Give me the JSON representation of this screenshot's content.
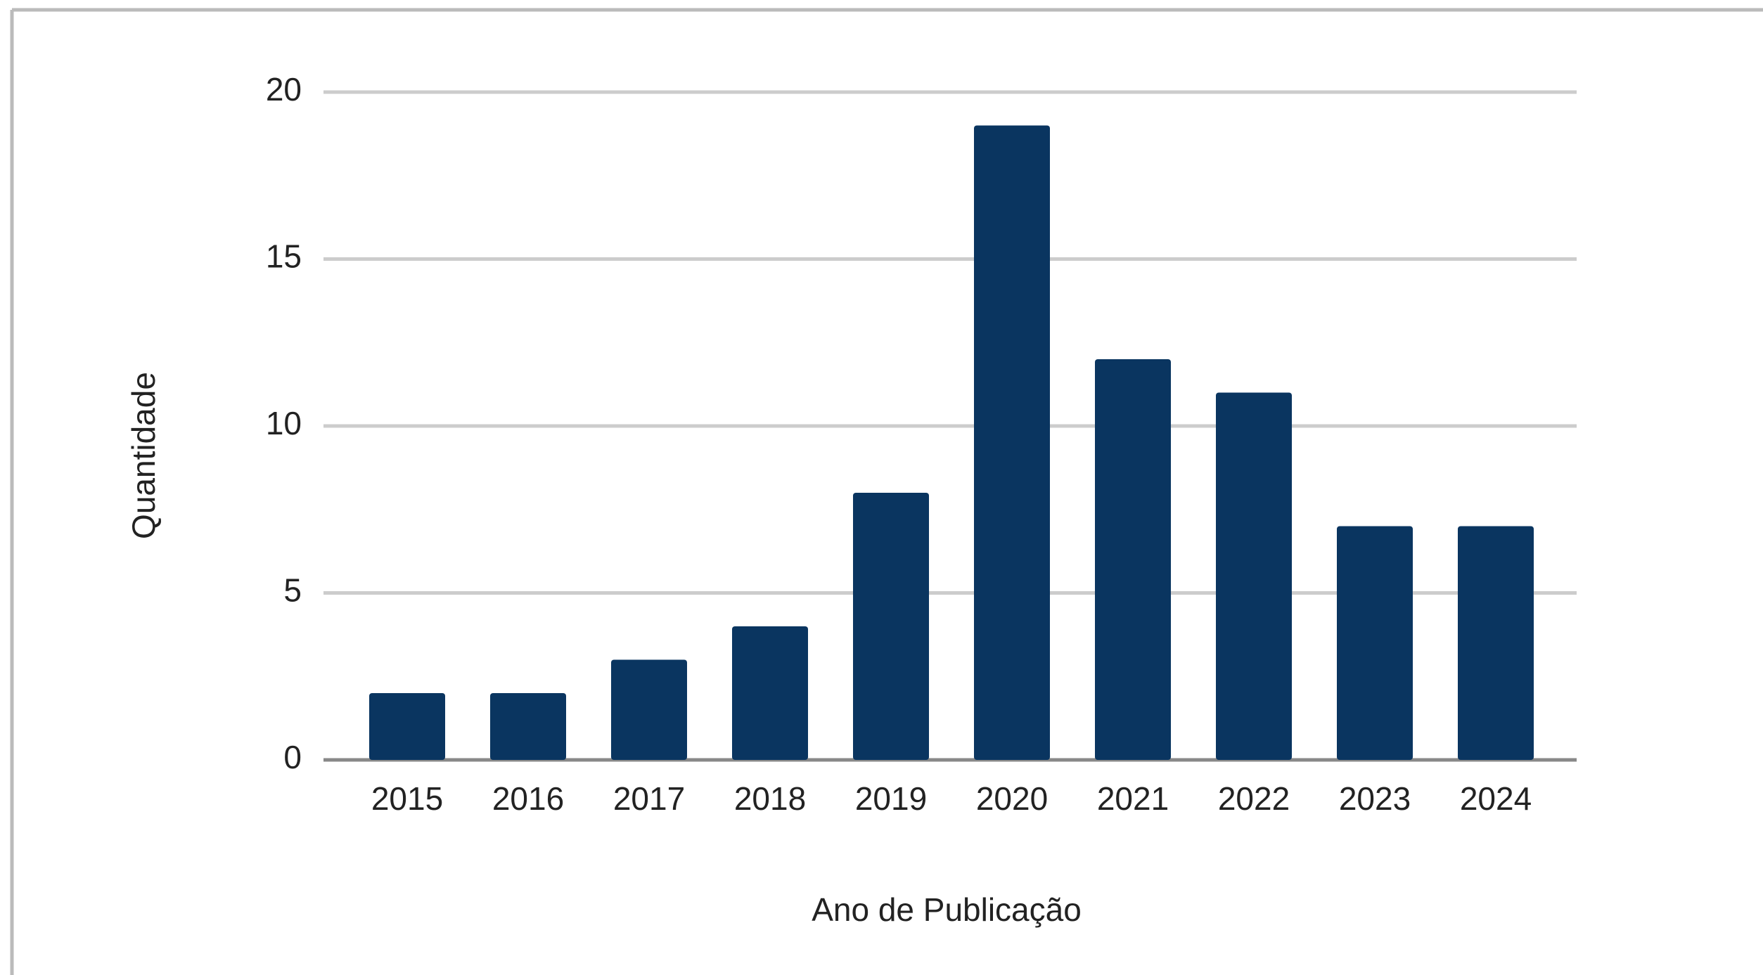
{
  "chart_data": {
    "type": "bar",
    "x_label": "Ano de Publicação",
    "y_label": "Quantidade",
    "categories": [
      "2015",
      "2016",
      "2017",
      "2018",
      "2019",
      "2020",
      "2021",
      "2022",
      "2023",
      "2024"
    ],
    "values": [
      2,
      2,
      3,
      4,
      8,
      19,
      12,
      11,
      7,
      7
    ],
    "color": "#0a3560",
    "ylim": [
      0,
      20
    ],
    "yticks": [
      0,
      5,
      10,
      15,
      20
    ],
    "grid": true
  }
}
